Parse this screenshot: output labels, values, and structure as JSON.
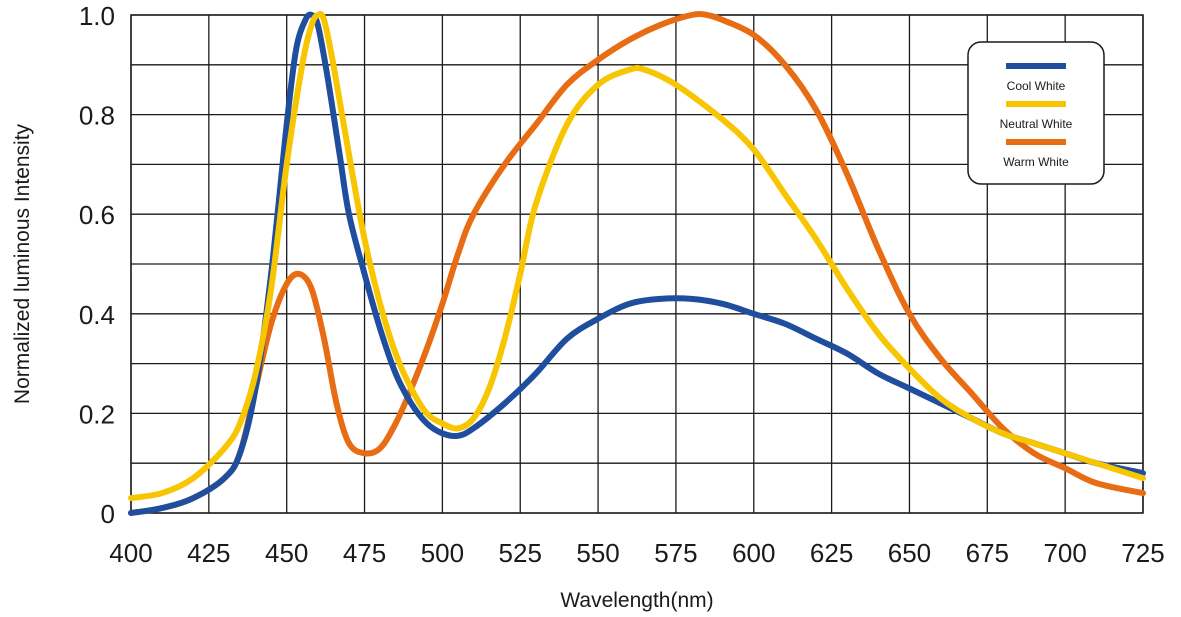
{
  "chart_data": {
    "type": "line",
    "title": "",
    "xlabel": "Wavelength(nm)",
    "ylabel": "Normalized luminous Intensity",
    "xlim": [
      400,
      725
    ],
    "ylim": [
      0,
      1.0
    ],
    "grid": true,
    "legend_position": "top-right",
    "x_ticks": [
      400,
      425,
      450,
      475,
      500,
      525,
      550,
      575,
      600,
      625,
      650,
      675,
      700,
      725
    ],
    "x_tick_labels": [
      "400",
      "425",
      "450",
      "475",
      "500",
      "525",
      "550",
      "575",
      "600",
      "625",
      "650",
      "675",
      "700",
      "725"
    ],
    "y_ticks": [
      0,
      0.2,
      0.4,
      0.6,
      0.8,
      1.0
    ],
    "y_tick_labels": [
      "0",
      "0.2",
      "0.4",
      "0.6",
      "0.8",
      "1.0"
    ],
    "series": [
      {
        "name": "Cool White",
        "color": "#1F4E9E",
        "points": [
          [
            400,
            0.0
          ],
          [
            410,
            0.01
          ],
          [
            420,
            0.03
          ],
          [
            430,
            0.07
          ],
          [
            435,
            0.12
          ],
          [
            440,
            0.25
          ],
          [
            445,
            0.48
          ],
          [
            450,
            0.78
          ],
          [
            453,
            0.93
          ],
          [
            456,
            0.99
          ],
          [
            458,
            1.0
          ],
          [
            460,
            0.98
          ],
          [
            463,
            0.88
          ],
          [
            467,
            0.72
          ],
          [
            470,
            0.6
          ],
          [
            475,
            0.48
          ],
          [
            480,
            0.37
          ],
          [
            485,
            0.28
          ],
          [
            490,
            0.22
          ],
          [
            495,
            0.18
          ],
          [
            500,
            0.16
          ],
          [
            505,
            0.155
          ],
          [
            510,
            0.17
          ],
          [
            520,
            0.22
          ],
          [
            530,
            0.28
          ],
          [
            540,
            0.35
          ],
          [
            550,
            0.39
          ],
          [
            560,
            0.42
          ],
          [
            570,
            0.43
          ],
          [
            580,
            0.43
          ],
          [
            590,
            0.42
          ],
          [
            600,
            0.4
          ],
          [
            610,
            0.38
          ],
          [
            620,
            0.35
          ],
          [
            630,
            0.32
          ],
          [
            640,
            0.28
          ],
          [
            650,
            0.25
          ],
          [
            660,
            0.22
          ],
          [
            670,
            0.19
          ],
          [
            680,
            0.16
          ],
          [
            690,
            0.14
          ],
          [
            700,
            0.12
          ],
          [
            710,
            0.1
          ],
          [
            725,
            0.08
          ]
        ]
      },
      {
        "name": "Neutral White",
        "color": "#F7C600",
        "points": [
          [
            400,
            0.03
          ],
          [
            410,
            0.04
          ],
          [
            420,
            0.07
          ],
          [
            430,
            0.13
          ],
          [
            435,
            0.18
          ],
          [
            440,
            0.28
          ],
          [
            445,
            0.45
          ],
          [
            450,
            0.7
          ],
          [
            455,
            0.9
          ],
          [
            458,
            0.98
          ],
          [
            460,
            1.0
          ],
          [
            462,
            0.99
          ],
          [
            465,
            0.9
          ],
          [
            470,
            0.72
          ],
          [
            475,
            0.55
          ],
          [
            480,
            0.42
          ],
          [
            485,
            0.32
          ],
          [
            490,
            0.25
          ],
          [
            495,
            0.2
          ],
          [
            500,
            0.18
          ],
          [
            505,
            0.17
          ],
          [
            510,
            0.19
          ],
          [
            515,
            0.25
          ],
          [
            520,
            0.35
          ],
          [
            525,
            0.48
          ],
          [
            530,
            0.62
          ],
          [
            540,
            0.78
          ],
          [
            550,
            0.86
          ],
          [
            560,
            0.89
          ],
          [
            565,
            0.89
          ],
          [
            575,
            0.86
          ],
          [
            590,
            0.79
          ],
          [
            600,
            0.73
          ],
          [
            610,
            0.64
          ],
          [
            620,
            0.55
          ],
          [
            630,
            0.45
          ],
          [
            640,
            0.36
          ],
          [
            650,
            0.29
          ],
          [
            660,
            0.23
          ],
          [
            670,
            0.19
          ],
          [
            680,
            0.16
          ],
          [
            690,
            0.14
          ],
          [
            700,
            0.12
          ],
          [
            710,
            0.1
          ],
          [
            725,
            0.07
          ]
        ]
      },
      {
        "name": "Warm White",
        "color": "#E86C13",
        "points": [
          [
            400,
            0.0
          ],
          [
            410,
            0.01
          ],
          [
            420,
            0.03
          ],
          [
            430,
            0.07
          ],
          [
            435,
            0.12
          ],
          [
            440,
            0.25
          ],
          [
            445,
            0.38
          ],
          [
            450,
            0.46
          ],
          [
            454,
            0.48
          ],
          [
            458,
            0.45
          ],
          [
            462,
            0.35
          ],
          [
            466,
            0.22
          ],
          [
            470,
            0.14
          ],
          [
            475,
            0.12
          ],
          [
            480,
            0.13
          ],
          [
            485,
            0.18
          ],
          [
            490,
            0.25
          ],
          [
            495,
            0.33
          ],
          [
            500,
            0.42
          ],
          [
            505,
            0.52
          ],
          [
            510,
            0.6
          ],
          [
            520,
            0.7
          ],
          [
            530,
            0.78
          ],
          [
            540,
            0.86
          ],
          [
            550,
            0.91
          ],
          [
            560,
            0.95
          ],
          [
            570,
            0.98
          ],
          [
            580,
            1.0
          ],
          [
            585,
            1.0
          ],
          [
            590,
            0.99
          ],
          [
            600,
            0.96
          ],
          [
            610,
            0.9
          ],
          [
            620,
            0.81
          ],
          [
            630,
            0.68
          ],
          [
            640,
            0.53
          ],
          [
            650,
            0.4
          ],
          [
            660,
            0.31
          ],
          [
            670,
            0.24
          ],
          [
            680,
            0.17
          ],
          [
            690,
            0.12
          ],
          [
            700,
            0.09
          ],
          [
            710,
            0.06
          ],
          [
            725,
            0.04
          ]
        ]
      }
    ]
  }
}
